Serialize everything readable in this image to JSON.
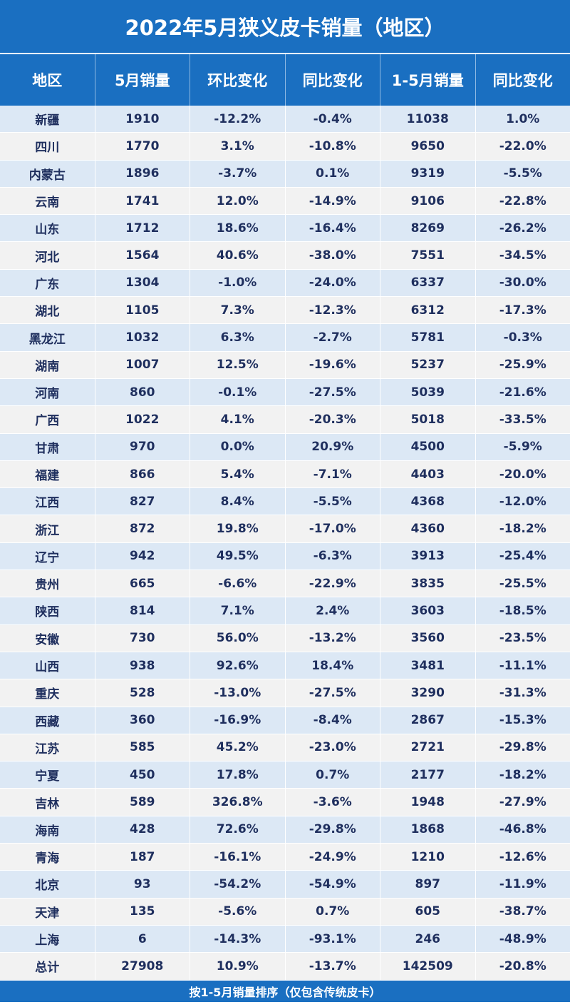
{
  "chart_data": {
    "type": "table",
    "title": "2022年5月狭义皮卡销量（地区）",
    "columns": [
      "地区",
      "5月销量",
      "环比变化",
      "同比变化",
      "1-5月销量",
      "同比变化"
    ],
    "rows": [
      [
        "新疆",
        "1910",
        "-12.2%",
        "-0.4%",
        "11038",
        "1.0%"
      ],
      [
        "四川",
        "1770",
        "3.1%",
        "-10.8%",
        "9650",
        "-22.0%"
      ],
      [
        "内蒙古",
        "1896",
        "-3.7%",
        "0.1%",
        "9319",
        "-5.5%"
      ],
      [
        "云南",
        "1741",
        "12.0%",
        "-14.9%",
        "9106",
        "-22.8%"
      ],
      [
        "山东",
        "1712",
        "18.6%",
        "-16.4%",
        "8269",
        "-26.2%"
      ],
      [
        "河北",
        "1564",
        "40.6%",
        "-38.0%",
        "7551",
        "-34.5%"
      ],
      [
        "广东",
        "1304",
        "-1.0%",
        "-24.0%",
        "6337",
        "-30.0%"
      ],
      [
        "湖北",
        "1105",
        "7.3%",
        "-12.3%",
        "6312",
        "-17.3%"
      ],
      [
        "黑龙江",
        "1032",
        "6.3%",
        "-2.7%",
        "5781",
        "-0.3%"
      ],
      [
        "湖南",
        "1007",
        "12.5%",
        "-19.6%",
        "5237",
        "-25.9%"
      ],
      [
        "河南",
        "860",
        "-0.1%",
        "-27.5%",
        "5039",
        "-21.6%"
      ],
      [
        "广西",
        "1022",
        "4.1%",
        "-20.3%",
        "5018",
        "-33.5%"
      ],
      [
        "甘肃",
        "970",
        "0.0%",
        "20.9%",
        "4500",
        "-5.9%"
      ],
      [
        "福建",
        "866",
        "5.4%",
        "-7.1%",
        "4403",
        "-20.0%"
      ],
      [
        "江西",
        "827",
        "8.4%",
        "-5.5%",
        "4368",
        "-12.0%"
      ],
      [
        "浙江",
        "872",
        "19.8%",
        "-17.0%",
        "4360",
        "-18.2%"
      ],
      [
        "辽宁",
        "942",
        "49.5%",
        "-6.3%",
        "3913",
        "-25.4%"
      ],
      [
        "贵州",
        "665",
        "-6.6%",
        "-22.9%",
        "3835",
        "-25.5%"
      ],
      [
        "陕西",
        "814",
        "7.1%",
        "2.4%",
        "3603",
        "-18.5%"
      ],
      [
        "安徽",
        "730",
        "56.0%",
        "-13.2%",
        "3560",
        "-23.5%"
      ],
      [
        "山西",
        "938",
        "92.6%",
        "18.4%",
        "3481",
        "-11.1%"
      ],
      [
        "重庆",
        "528",
        "-13.0%",
        "-27.5%",
        "3290",
        "-31.3%"
      ],
      [
        "西藏",
        "360",
        "-16.9%",
        "-8.4%",
        "2867",
        "-15.3%"
      ],
      [
        "江苏",
        "585",
        "45.2%",
        "-23.0%",
        "2721",
        "-29.8%"
      ],
      [
        "宁夏",
        "450",
        "17.8%",
        "0.7%",
        "2177",
        "-18.2%"
      ],
      [
        "吉林",
        "589",
        "326.8%",
        "-3.6%",
        "1948",
        "-27.9%"
      ],
      [
        "海南",
        "428",
        "72.6%",
        "-29.8%",
        "1868",
        "-46.8%"
      ],
      [
        "青海",
        "187",
        "-16.1%",
        "-24.9%",
        "1210",
        "-12.6%"
      ],
      [
        "北京",
        "93",
        "-54.2%",
        "-54.9%",
        "897",
        "-11.9%"
      ],
      [
        "天津",
        "135",
        "-5.6%",
        "0.7%",
        "605",
        "-38.7%"
      ],
      [
        "上海",
        "6",
        "-14.3%",
        "-93.1%",
        "246",
        "-48.9%"
      ],
      [
        "总计",
        "27908",
        "10.9%",
        "-13.7%",
        "142509",
        "-20.8%"
      ]
    ],
    "footnote": "按1-5月销量排序（仅包含传统皮卡）"
  },
  "colors": {
    "header_bg": "#1a6fc1",
    "row_odd": "#dce8f5",
    "row_even": "#f2f2f2",
    "text_dark": "#1f2f5e",
    "negative": "#22a24a",
    "positive": "#e0141e"
  }
}
